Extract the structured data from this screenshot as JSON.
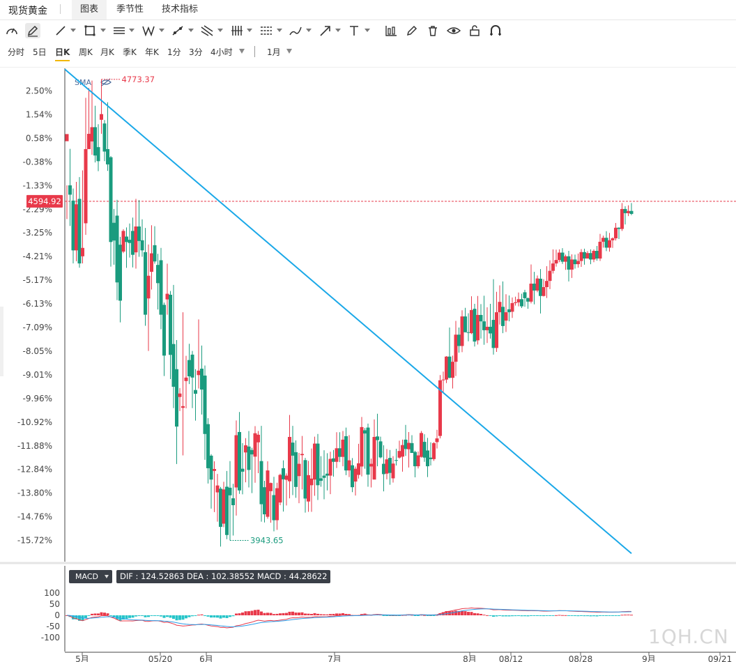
{
  "header": {
    "title": "现货黄金",
    "tabs": [
      {
        "label": "图表",
        "active": true
      },
      {
        "label": "季节性",
        "active": false
      },
      {
        "label": "技术指标",
        "active": false
      }
    ]
  },
  "toolbar": {
    "tools": [
      "gauge-icon",
      "pencil-icon",
      "line-icon",
      "rectangle-icon",
      "parallel-lines-icon",
      "pattern-icon",
      "trend-line-icon",
      "fork-icon",
      "bars-icon",
      "ruler-icon",
      "brush-icon",
      "arrow-icon",
      "text-icon",
      "candle-chart-icon",
      "edit-icon",
      "trash-icon",
      "eye-icon",
      "lock-icon",
      "magnet-icon"
    ]
  },
  "periods": {
    "items": [
      {
        "label": "分时",
        "active": false
      },
      {
        "label": "5日",
        "active": false
      },
      {
        "label": "日K",
        "active": true
      },
      {
        "label": "周K",
        "active": false
      },
      {
        "label": "月K",
        "active": false
      },
      {
        "label": "季K",
        "active": false
      },
      {
        "label": "年K",
        "active": false
      },
      {
        "label": "1分",
        "active": false
      },
      {
        "label": "3分",
        "active": false
      },
      {
        "label": "4小时",
        "active": false
      }
    ],
    "range": "1月"
  },
  "chart_data": {
    "type": "candlestick",
    "indicator_label": "SMA",
    "y_axis_labels": [
      "2.50%",
      "1.54%",
      "0.58%",
      "-0.38%",
      "-1.33%",
      "-2.29%",
      "-3.25%",
      "-4.21%",
      "-5.17%",
      "-6.13%",
      "-7.09%",
      "-8.05%",
      "-9.01%",
      "-9.96%",
      "-10.92%",
      "-11.88%",
      "-12.84%",
      "-13.80%",
      "-14.76%",
      "-15.72%"
    ],
    "current_price": "4594.92",
    "high_marker": "4773.37",
    "low_marker": "3943.65",
    "x_axis_labels": [
      "5月",
      "05/20",
      "6月",
      "7月",
      "8月",
      "08/12",
      "08/28",
      "9月",
      "09/21"
    ],
    "up_color": "#e8394a",
    "down_color": "#1a9b7e",
    "trendline_color": "#1aa8e8",
    "candles": [
      [
        0.46,
        0.75,
        -1.32,
        -2.69
      ],
      [
        -1.32,
        -1.7,
        0.15,
        -2.97
      ],
      [
        -1.94,
        -3.96,
        -1.45,
        -4.49
      ],
      [
        -3.96,
        -2.09,
        -1.18,
        -4.4
      ],
      [
        -1.87,
        -4.49,
        -0.99,
        -4.66
      ],
      [
        -4.2,
        -3.86,
        -0.72,
        -4.49
      ],
      [
        -2.86,
        0.14,
        2.22,
        -3.33
      ],
      [
        0.14,
        0.76,
        2.62,
        0.25
      ],
      [
        0.45,
        1.03,
        2.92,
        -0.09
      ],
      [
        1.03,
        -0.12,
        1.9,
        -0.4
      ],
      [
        0.22,
        -0.35,
        1.15,
        -0.75
      ],
      [
        1.33,
        1.56,
        2.97,
        0.76
      ],
      [
        1.18,
        0.04,
        1.32,
        -0.35
      ],
      [
        0.14,
        -0.48,
        2.04,
        -0.74
      ],
      [
        -0.19,
        -3.62,
        -0.14,
        -4.62
      ],
      [
        -2.84,
        -3.56,
        -2.28,
        -4.54
      ],
      [
        -2.55,
        -5.26,
        -1.91,
        -5.98
      ],
      [
        -3.73,
        -6.0,
        -3.41,
        -6.88
      ],
      [
        -4.01,
        -3.17,
        -3.1,
        -4.07
      ],
      [
        -3.4,
        -3.62,
        -3.03,
        -4.67
      ],
      [
        -3.53,
        -3.66,
        -2.87,
        -4.25
      ],
      [
        -3.17,
        -4.14,
        -2.63,
        -4.65
      ],
      [
        -4.04,
        -2.99,
        -1.87,
        -4.7
      ],
      [
        -2.99,
        -3.58,
        -1.92,
        -4.22
      ],
      [
        -3.55,
        -3.96,
        -2.7,
        -4.22
      ],
      [
        -4.03,
        -6.57,
        -3.05,
        -7.02
      ],
      [
        -5.91,
        -4.99,
        -3.72,
        -8.04
      ],
      [
        -4.83,
        -4.08,
        -2.94,
        -5.55
      ],
      [
        -3.75,
        -4.41,
        -2.98,
        -4.5
      ],
      [
        -4.55,
        -5.29,
        -4.1,
        -6.36
      ],
      [
        -4.36,
        -6.57,
        -3.86,
        -7.16
      ],
      [
        -6.17,
        -8.23,
        -6.08,
        -9.06
      ],
      [
        -5.95,
        -5.72,
        -4.5,
        -6.57
      ],
      [
        -5.76,
        -8.2,
        -5.61,
        -9.18
      ],
      [
        -7.76,
        -9.49,
        -5.36,
        -10.35
      ],
      [
        -8.78,
        -11.1,
        -7.6,
        -12.62
      ],
      [
        -9.9,
        -9.76,
        -9.54,
        -10.47
      ],
      [
        -10.34,
        -10.27,
        -6.47,
        -12.27
      ],
      [
        -9.26,
        -9.12,
        -8.24,
        -10.36
      ],
      [
        -8.41,
        -9.07,
        -7.75,
        -9.38
      ],
      [
        -8.19,
        -9.12,
        -8.04,
        -10.35
      ],
      [
        -9.62,
        -9.77,
        -8.78,
        -10.86
      ],
      [
        -9.02,
        -8.84,
        -6.76,
        -9.56
      ],
      [
        -8.76,
        -9.6,
        -7.82,
        -10.61
      ],
      [
        -9.04,
        -11.4,
        -8.63,
        -12.45
      ],
      [
        -11.0,
        -12.79,
        -10.76,
        -13.41
      ],
      [
        -12.28,
        -13.25,
        -12.22,
        -14.43
      ],
      [
        -12.9,
        -12.82,
        -12.51,
        -14.57
      ],
      [
        -13.77,
        -13.49,
        -13.02,
        -14.96
      ],
      [
        -13.62,
        -15.17,
        -13.55,
        -15.97
      ],
      [
        -15.04,
        -13.65,
        -13.34,
        -15.18
      ],
      [
        -13.54,
        -15.5,
        -12.9,
        -15.67
      ],
      [
        -13.58,
        -13.89,
        -12.5,
        -15.72
      ],
      [
        -14.01,
        -14.29,
        -13.42,
        -15.52
      ],
      [
        -13.57,
        -11.45,
        -10.85,
        -14.71
      ],
      [
        -11.32,
        -13.69,
        -10.51,
        -13.83
      ],
      [
        -12.81,
        -12.93,
        -11.77,
        -13.85
      ],
      [
        -12.15,
        -11.86,
        -11.57,
        -13.36
      ],
      [
        -11.91,
        -12.86,
        -11.28,
        -13.57
      ],
      [
        -12.05,
        -12.23,
        -11.96,
        -13.8
      ],
      [
        -12.32,
        -11.37,
        -11.08,
        -13.38
      ],
      [
        -11.74,
        -11.43,
        -11.28,
        -12.99
      ],
      [
        -12.5,
        -14.25,
        -11.07,
        -14.96
      ],
      [
        -13.56,
        -14.66,
        -13.3,
        -14.99
      ],
      [
        -14.76,
        -12.88,
        -12.51,
        -14.84
      ],
      [
        -13.72,
        -13.39,
        -13.37,
        -15.0
      ],
      [
        -13.88,
        -14.9,
        -13.14,
        -15.35
      ],
      [
        -14.9,
        -13.6,
        -13.38,
        -15.29
      ],
      [
        -14.18,
        -13.06,
        -13.01,
        -14.29
      ],
      [
        -12.79,
        -13.24,
        -12.47,
        -14.55
      ],
      [
        -13.26,
        -13.09,
        -13.0,
        -14.3
      ],
      [
        -13.32,
        -11.52,
        -10.63,
        -14.01
      ],
      [
        -11.75,
        -12.28,
        -11.07,
        -13.88
      ],
      [
        -12.14,
        -13.55,
        -11.66,
        -13.99
      ],
      [
        -13.11,
        -12.61,
        -12.17,
        -14.21
      ],
      [
        -12.26,
        -12.21,
        -11.48,
        -13.65
      ],
      [
        -12.46,
        -14.02,
        -12.37,
        -14.59
      ],
      [
        -14.14,
        -13.07,
        -12.49,
        -14.56
      ],
      [
        -13.48,
        -13.21,
        -11.99,
        -14.56
      ],
      [
        -13.25,
        -11.79,
        -11.51,
        -13.91
      ],
      [
        -11.79,
        -13.48,
        -11.4,
        -14.08
      ],
      [
        -13.2,
        -13.3,
        -12.3,
        -13.54
      ],
      [
        -13.09,
        -13.18,
        -12.06,
        -14.05
      ],
      [
        -13.01,
        -13.09,
        -12.18,
        -13.69
      ],
      [
        -13.09,
        -12.41,
        -12.12,
        -13.84
      ],
      [
        -12.39,
        -12.53,
        -12.05,
        -13.13
      ],
      [
        -12.53,
        -11.98,
        -11.33,
        -12.78
      ],
      [
        -11.98,
        -12.33,
        -11.33,
        -12.54
      ],
      [
        -12.33,
        -11.63,
        -11.28,
        -12.71
      ],
      [
        -11.49,
        -12.88,
        -11.14,
        -13.07
      ],
      [
        -12.88,
        -12.47,
        -11.45,
        -13.15
      ],
      [
        -12.67,
        -13.56,
        -12.38,
        -13.76
      ],
      [
        -13.33,
        -12.81,
        -12.72,
        -13.9
      ],
      [
        -13.06,
        -12.59,
        -11.8,
        -13.21
      ],
      [
        -12.72,
        -11.12,
        -10.71,
        -13.12
      ],
      [
        -11.25,
        -11.38,
        -11.16,
        -12.81
      ],
      [
        -11.14,
        -13.05,
        -10.98,
        -13.54
      ],
      [
        -12.72,
        -12.61,
        -12.4,
        -13.57
      ],
      [
        -13.25,
        -11.52,
        -10.81,
        -13.12
      ],
      [
        -11.5,
        -11.65,
        -10.58,
        -12.71
      ],
      [
        -11.7,
        -12.35,
        -11.51,
        -12.39
      ],
      [
        -12.61,
        -13.03,
        -11.86,
        -13.73
      ],
      [
        -13.01,
        -12.43,
        -12.01,
        -13.24
      ],
      [
        -12.37,
        -12.98,
        -12.05,
        -13.46
      ],
      [
        -13.2,
        -12.6,
        -12.3,
        -13.37
      ],
      [
        -12.46,
        -12.49,
        -12.0,
        -12.68
      ],
      [
        -12.36,
        -12.09,
        -11.67,
        -12.4
      ],
      [
        -12.32,
        -11.85,
        -11.63,
        -12.93
      ],
      [
        -11.63,
        -12.01,
        -11.03,
        -12.29
      ],
      [
        -12.02,
        -11.76,
        -11.32,
        -12.76
      ],
      [
        -11.77,
        -12.17,
        -11.45,
        -12.17
      ],
      [
        -12.13,
        -12.71,
        -12.08,
        -13.16
      ],
      [
        -12.71,
        -12.27,
        -12.11,
        -12.8
      ],
      [
        -12.33,
        -11.36,
        -11.28,
        -12.36
      ],
      [
        -11.72,
        -12.36,
        -11.41,
        -12.53
      ],
      [
        -12.07,
        -12.71,
        -11.56,
        -13.15
      ],
      [
        -12.36,
        -12.42,
        -11.74,
        -12.68
      ],
      [
        -12.42,
        -11.77,
        -11.73,
        -12.49
      ],
      [
        -11.73,
        -11.58,
        -11.23,
        -11.99
      ],
      [
        -11.48,
        -9.23,
        -9.02,
        -11.58
      ],
      [
        -9.2,
        -9.2,
        -8.88,
        -9.73
      ],
      [
        -9.2,
        -8.27,
        -8.25,
        -9.34
      ],
      [
        -8.27,
        -9.13,
        -7.09,
        -9.15
      ],
      [
        -9.13,
        -8.48,
        -8.23,
        -9.56
      ],
      [
        -8.48,
        -7.38,
        -6.82,
        -9.06
      ],
      [
        -7.38,
        -7.84,
        -7.09,
        -8.11
      ],
      [
        -7.84,
        -6.64,
        -6.39,
        -8.09
      ],
      [
        -6.64,
        -7.28,
        -6.29,
        -7.29
      ],
      [
        -7.28,
        -7.3,
        -6.51,
        -7.65
      ],
      [
        -7.32,
        -6.38,
        -5.82,
        -7.36
      ],
      [
        -6.33,
        -7.66,
        -6.13,
        -7.86
      ],
      [
        -7.61,
        -6.58,
        -5.81,
        -7.78
      ],
      [
        -6.58,
        -6.84,
        -6.14,
        -7.54
      ],
      [
        -6.84,
        -7.2,
        -5.8,
        -7.79
      ],
      [
        -7.2,
        -7.06,
        -6.27,
        -7.72
      ],
      [
        -7.06,
        -7.33,
        -6.13,
        -7.54
      ],
      [
        -6.78,
        -7.92,
        -5.13,
        -8.19
      ],
      [
        -7.92,
        -6.47,
        -5.64,
        -8.08
      ],
      [
        -6.47,
        -6.05,
        -5.38,
        -6.97
      ],
      [
        -6.25,
        -7.03,
        -5.22,
        -7.32
      ],
      [
        -6.81,
        -6.47,
        -5.74,
        -7.27
      ],
      [
        -6.35,
        -6.47,
        -5.79,
        -6.84
      ],
      [
        -6.45,
        -6.1,
        -5.87,
        -6.7
      ],
      [
        -6.1,
        -6.07,
        -5.84,
        -6.2
      ],
      [
        -6.07,
        -5.94,
        -5.67,
        -6.23
      ],
      [
        -5.94,
        -6.23,
        -5.72,
        -6.3
      ],
      [
        -5.66,
        -5.9,
        -5.56,
        -6.25
      ],
      [
        -5.9,
        -6.04,
        -5.87,
        -6.33
      ],
      [
        -6.04,
        -5.31,
        -4.53,
        -6.11
      ],
      [
        -5.31,
        -5.59,
        -4.83,
        -6.15
      ],
      [
        -5.59,
        -5.1,
        -4.98,
        -5.66
      ],
      [
        -5.11,
        -5.81,
        -4.72,
        -6.52
      ],
      [
        -5.81,
        -5.45,
        -5.13,
        -5.83
      ],
      [
        -5.45,
        -5.2,
        -4.6,
        -5.89
      ],
      [
        -5.2,
        -4.79,
        -4.36,
        -5.53
      ],
      [
        -4.79,
        -4.49,
        -3.92,
        -4.9
      ],
      [
        -4.49,
        -4.35,
        -3.93,
        -4.62
      ],
      [
        -4.35,
        -4.05,
        -3.92,
        -4.44
      ],
      [
        -4.05,
        -4.42,
        -3.87,
        -4.51
      ],
      [
        -4.42,
        -4.2,
        -4.13,
        -4.75
      ],
      [
        -4.2,
        -4.74,
        -3.98,
        -5.22
      ],
      [
        -4.74,
        -4.33,
        -4.12,
        -5.08
      ],
      [
        -4.33,
        -4.52,
        -4.13,
        -4.7
      ],
      [
        -4.52,
        -4.39,
        -4.09,
        -4.66
      ],
      [
        -4.39,
        -4.03,
        -3.91,
        -4.63
      ],
      [
        -4.03,
        -4.29,
        -3.89,
        -4.54
      ],
      [
        -4.29,
        -4.07,
        -3.99,
        -4.29
      ],
      [
        -4.07,
        -4.33,
        -3.92,
        -4.52
      ],
      [
        -4.33,
        -3.98,
        -3.92,
        -4.44
      ],
      [
        -3.98,
        -4.29,
        -3.78,
        -4.38
      ],
      [
        -4.29,
        -3.61,
        -3.29,
        -4.39
      ],
      [
        -3.61,
        -3.45,
        -3.36,
        -3.85
      ],
      [
        -3.45,
        -3.85,
        -3.18,
        -3.99
      ],
      [
        -3.85,
        -3.55,
        -3.25,
        -4.01
      ],
      [
        -3.55,
        -3.47,
        -3.43,
        -3.86
      ],
      [
        -3.47,
        -3.04,
        -2.85,
        -3.56
      ],
      [
        -3.04,
        -3.09,
        -3.02,
        -3.5
      ],
      [
        -3.09,
        -2.28,
        -2.04,
        -3.17
      ],
      [
        -2.28,
        -2.45,
        -2.17,
        -2.91
      ],
      [
        -2.45,
        -2.36,
        -2.13,
        -2.57
      ],
      [
        -2.36,
        -2.48,
        -2.04,
        -2.53
      ]
    ],
    "trendline": {
      "from": [
        0,
        3.38
      ],
      "to": [
        180,
        -16.25
      ]
    },
    "macd": {
      "dif": 124.52863,
      "dea": 102.38552,
      "macd": 44.28622,
      "y_axis_labels": [
        "100",
        "50",
        "0",
        "-50",
        "-100"
      ]
    }
  },
  "macd_panel": {
    "selector_label": "MACD",
    "info": "DIF : 124.52863  DEA : 102.38552  MACD : 44.28622"
  },
  "watermark": "1QH.CN"
}
